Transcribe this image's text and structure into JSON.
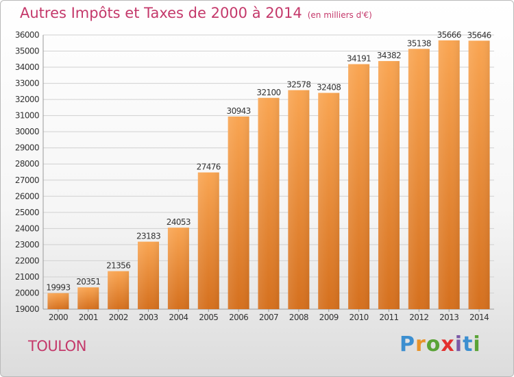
{
  "header": {
    "title": "Autres Impôts et Taxes de 2000 à 2014",
    "unit": "(en milliers d'€)"
  },
  "footer": {
    "city": "TOULON",
    "logo": "Proxiti"
  },
  "colors": {
    "bar_light": "#f7a24f",
    "bar_dark": "#d66f1c",
    "title": "#c4386a",
    "grid": "#d0d0d0"
  },
  "chart_data": {
    "type": "bar",
    "title": "Autres Impôts et Taxes de 2000 à 2014",
    "subtitle": "(en milliers d'€)",
    "xlabel": "",
    "ylabel": "",
    "ylim": [
      19000,
      36000
    ],
    "ytick_step": 1000,
    "grid": true,
    "categories": [
      "2000",
      "2001",
      "2002",
      "2003",
      "2004",
      "2005",
      "2006",
      "2007",
      "2008",
      "2009",
      "2010",
      "2011",
      "2012",
      "2013",
      "2014"
    ],
    "values": [
      19993,
      20351,
      21356,
      23183,
      24053,
      27476,
      30943,
      32100,
      32578,
      32408,
      34191,
      34382,
      35138,
      35666,
      35646
    ]
  }
}
